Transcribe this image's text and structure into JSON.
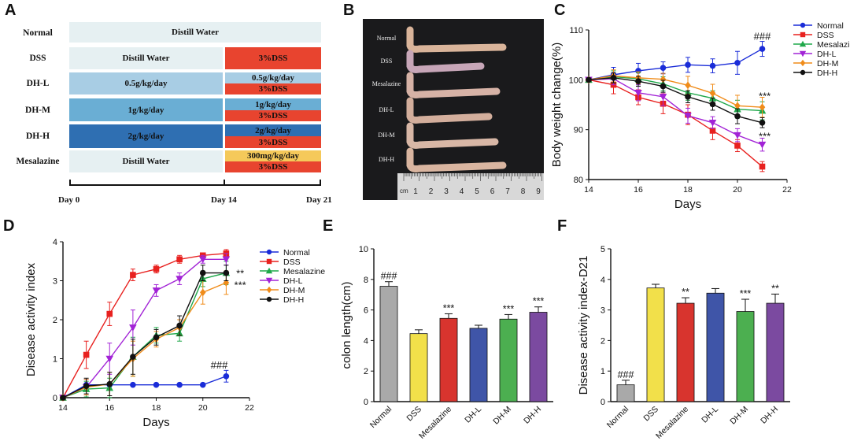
{
  "panels": {
    "a": "A",
    "b": "B",
    "c": "C",
    "d": "D",
    "e": "E",
    "f": "F"
  },
  "panelA": {
    "rows": [
      {
        "name": "Normal",
        "segments": [
          {
            "text": "Distill Water",
            "color": "#e6f0f2"
          }
        ]
      },
      {
        "name": "DSS",
        "segments": [
          {
            "text": "Distill Water",
            "color": "#e6f0f2"
          },
          {
            "text": "3%DSS",
            "color": "#e8442f"
          }
        ]
      },
      {
        "name": "DH-L",
        "segments": [
          {
            "text": "0.5g/kg/day",
            "color": "#a8cde4"
          },
          {
            "text": "0.5g/kg/day",
            "color": "#a8cde4"
          },
          {
            "text": "3%DSS",
            "color": "#e8442f"
          }
        ]
      },
      {
        "name": "DH-M",
        "segments": [
          {
            "text": "1g/kg/day",
            "color": "#6aaed4"
          },
          {
            "text": "1g/kg/day",
            "color": "#6aaed4"
          },
          {
            "text": "3%DSS",
            "color": "#e8442f"
          }
        ]
      },
      {
        "name": "DH-H",
        "segments": [
          {
            "text": "2g/kg/day",
            "color": "#2f6fb2"
          },
          {
            "text": "2g/kg/day",
            "color": "#2f6fb2"
          },
          {
            "text": "3%DSS",
            "color": "#e8442f"
          }
        ]
      },
      {
        "name": "Mesalazine",
        "segments": [
          {
            "text": "Distill Water",
            "color": "#e6f0f2"
          },
          {
            "text": "300mg/kg/day",
            "color": "#f5c95a"
          },
          {
            "text": "3%DSS",
            "color": "#e8442f"
          }
        ]
      }
    ],
    "days": [
      "Day 0",
      "Day 14",
      "Day 21"
    ]
  },
  "panelB": {
    "labels": [
      "Normal",
      "DSS",
      "Mesalazine",
      "DH-L",
      "DH-M",
      "DH-H"
    ],
    "ruler_unit": "cm",
    "ruler_numbers": [
      "1",
      "2",
      "3",
      "4",
      "5",
      "6",
      "7",
      "8",
      "9"
    ]
  },
  "chart_data": [
    {
      "id": "C",
      "type": "line",
      "xlabel": "Days",
      "ylabel": "Body weight change(%)",
      "xlim": [
        14,
        22
      ],
      "ylim": [
        80,
        110
      ],
      "xticks": [
        "14",
        "16",
        "18",
        "20",
        "22"
      ],
      "yticks": [
        "80",
        "90",
        "100",
        "110"
      ],
      "x": [
        14,
        15,
        16,
        17,
        18,
        19,
        20,
        21
      ],
      "series": [
        {
          "name": "Normal",
          "color": "#1a2cd8",
          "marker": "circle",
          "values": [
            100,
            101,
            101.8,
            102.4,
            103,
            102.8,
            103.4,
            106.2
          ],
          "err": [
            0,
            1.5,
            1.5,
            1.2,
            1.5,
            1.4,
            2.3,
            1.5
          ]
        },
        {
          "name": "DSS",
          "color": "#e8211f",
          "marker": "square",
          "values": [
            100,
            99,
            96.5,
            95.2,
            93,
            89.8,
            86.8,
            82.6
          ],
          "err": [
            0,
            1.8,
            1.5,
            2.0,
            2.0,
            1.8,
            1.2,
            1.0
          ]
        },
        {
          "name": "Mesalazine",
          "color": "#1fa84a",
          "marker": "triangle",
          "values": [
            100,
            100.6,
            100.2,
            99.2,
            97.4,
            96.3,
            94.1,
            93.8
          ],
          "err": [
            0,
            1.2,
            1.2,
            1.4,
            1.5,
            1.5,
            1.8,
            1.8
          ]
        },
        {
          "name": "DH-L",
          "color": "#a223d6",
          "marker": "triangle-down",
          "values": [
            100,
            100.2,
            97.4,
            96.6,
            92.8,
            91.4,
            88.9,
            87.0
          ],
          "err": [
            0,
            1.2,
            1.6,
            1.8,
            1.5,
            1.2,
            1.3,
            1.3
          ]
        },
        {
          "name": "DH-M",
          "color": "#f08c1a",
          "marker": "diamond",
          "values": [
            100,
            100.8,
            100.4,
            100.1,
            98.9,
            97.3,
            94.8,
            94.5
          ],
          "err": [
            0,
            1.2,
            1.2,
            1.2,
            1.8,
            1.8,
            2.1,
            2.0
          ]
        },
        {
          "name": "DH-H",
          "color": "#111111",
          "marker": "circle",
          "values": [
            100,
            100.4,
            99.7,
            98.7,
            96.6,
            95.1,
            92.7,
            91.4
          ],
          "err": [
            0,
            1.0,
            1.0,
            1.2,
            1.2,
            1.2,
            1.5,
            1.0
          ]
        }
      ],
      "annotations": [
        {
          "text": "###",
          "x": 21,
          "y": 108.8
        },
        {
          "text": "***",
          "x": 21.1,
          "y": 96.8
        },
        {
          "text": "***",
          "x": 21.1,
          "y": 88.8
        }
      ]
    },
    {
      "id": "D",
      "type": "line",
      "xlabel": "Days",
      "ylabel": "Disease activity index",
      "xlim": [
        14,
        22
      ],
      "ylim": [
        0,
        4
      ],
      "xticks": [
        "14",
        "16",
        "18",
        "20",
        "22"
      ],
      "yticks": [
        "0",
        "1",
        "2",
        "3",
        "4"
      ],
      "x": [
        14,
        15,
        16,
        17,
        18,
        19,
        20,
        21
      ],
      "series": [
        {
          "name": "Normal",
          "color": "#1a2cd8",
          "marker": "circle",
          "values": [
            0,
            0.33,
            0.33,
            0.33,
            0.33,
            0.33,
            0.33,
            0.55
          ],
          "err": [
            0,
            0,
            0,
            0,
            0,
            0,
            0,
            0.15
          ]
        },
        {
          "name": "DSS",
          "color": "#e8211f",
          "marker": "square",
          "values": [
            0,
            1.1,
            2.15,
            3.15,
            3.3,
            3.55,
            3.65,
            3.7
          ],
          "err": [
            0,
            0.35,
            0.3,
            0.15,
            0.1,
            0.1,
            0.05,
            0.1
          ]
        },
        {
          "name": "Mesalazine",
          "color": "#1fa84a",
          "marker": "triangle",
          "values": [
            0,
            0.22,
            0.25,
            1.05,
            1.6,
            1.65,
            3.05,
            3.2
          ],
          "err": [
            0,
            0.2,
            0.25,
            0.5,
            0.2,
            0.2,
            0.2,
            0.3
          ]
        },
        {
          "name": "DH-L",
          "color": "#a223d6",
          "marker": "triangle-down",
          "values": [
            0,
            0.27,
            1.0,
            1.8,
            2.75,
            3.05,
            3.55,
            3.55
          ],
          "err": [
            0,
            0.2,
            0.4,
            0.45,
            0.15,
            0.15,
            0.1,
            0.15
          ]
        },
        {
          "name": "DH-M",
          "color": "#f08c1a",
          "marker": "diamond",
          "values": [
            0,
            0.27,
            0.35,
            1.0,
            1.5,
            1.8,
            2.7,
            2.95
          ],
          "err": [
            0,
            0.2,
            0.3,
            0.45,
            0.2,
            0.2,
            0.3,
            0.3
          ]
        },
        {
          "name": "DH-H",
          "color": "#111111",
          "marker": "circle",
          "values": [
            0,
            0.3,
            0.35,
            1.05,
            1.55,
            1.85,
            3.2,
            3.2
          ],
          "err": [
            0,
            0.2,
            0.3,
            0.45,
            0.2,
            0.25,
            0.2,
            0.2
          ]
        }
      ],
      "annotations": [
        {
          "text": "**",
          "x": 21.6,
          "y": 3.2
        },
        {
          "text": "***",
          "x": 21.6,
          "y": 2.9
        },
        {
          "text": "###",
          "x": 20.7,
          "y": 0.85
        }
      ]
    },
    {
      "id": "E",
      "type": "bar",
      "xlabel": "",
      "ylabel": "colon length(cm)",
      "ylim": [
        0,
        10
      ],
      "yticks": [
        "0",
        "2",
        "4",
        "6",
        "8",
        "10"
      ],
      "categories": [
        "Normal",
        "DSS",
        "Mesalazine",
        "DH-L",
        "DH-M",
        "DH-H"
      ],
      "values": [
        7.55,
        4.45,
        5.45,
        4.8,
        5.4,
        5.85
      ],
      "err": [
        0.3,
        0.25,
        0.3,
        0.2,
        0.3,
        0.35
      ],
      "colors": [
        "#a9a9a9",
        "#f2e04a",
        "#d8342e",
        "#3f55a8",
        "#4caf50",
        "#7b4aa0"
      ],
      "labels": [
        "###",
        "",
        "***",
        "",
        "***",
        "***"
      ]
    },
    {
      "id": "F",
      "type": "bar",
      "xlabel": "",
      "ylabel": "Disease activity index-D21",
      "ylim": [
        0,
        5
      ],
      "yticks": [
        "0",
        "1",
        "2",
        "3",
        "4",
        "5"
      ],
      "categories": [
        "Normal",
        "DSS",
        "Mesalazine",
        "DH-L",
        "DH-M",
        "DH-H"
      ],
      "values": [
        0.55,
        3.72,
        3.22,
        3.55,
        2.95,
        3.22
      ],
      "err": [
        0.15,
        0.12,
        0.18,
        0.15,
        0.4,
        0.3
      ],
      "colors": [
        "#a9a9a9",
        "#f2e04a",
        "#d8342e",
        "#3f55a8",
        "#4caf50",
        "#7b4aa0"
      ],
      "labels": [
        "###",
        "",
        "**",
        "",
        "***",
        "**"
      ]
    }
  ]
}
